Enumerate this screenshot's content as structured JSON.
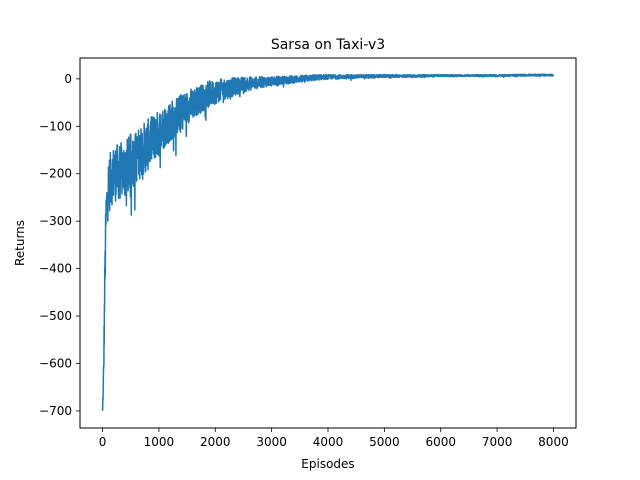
{
  "chart_data": {
    "type": "line",
    "title": "Sarsa on Taxi-v3",
    "xlabel": "Episodes",
    "ylabel": "Returns",
    "xlim": [
      -400,
      8400
    ],
    "ylim": [
      -736,
      44
    ],
    "xticks": [
      0,
      1000,
      2000,
      3000,
      4000,
      5000,
      6000,
      7000,
      8000
    ],
    "yticks": [
      0,
      -100,
      -200,
      -300,
      -400,
      -500,
      -600,
      -700
    ],
    "xtick_labels": [
      "0",
      "1000",
      "2000",
      "3000",
      "4000",
      "5000",
      "6000",
      "7000",
      "8000"
    ],
    "ytick_labels": [
      "0",
      "−100",
      "−200",
      "−300",
      "−400",
      "−500",
      "−600",
      "−700"
    ],
    "grid": false,
    "legend": "none",
    "series": [
      {
        "color": "#1f77b4",
        "x": [
          0,
          20,
          40,
          60,
          80,
          100,
          150,
          200,
          300,
          400,
          500,
          600,
          700,
          800,
          900,
          1000,
          1100,
          1200,
          1300,
          1400,
          1500,
          1600,
          1700,
          1800,
          1900,
          2000,
          2200,
          2400,
          2600,
          2800,
          3000,
          3200,
          3400,
          3600,
          3800,
          4000,
          4500,
          5000,
          5500,
          6000,
          6500,
          7000,
          7500,
          8000
        ],
        "y": [
          -700,
          -620,
          -430,
          -300,
          -260,
          -230,
          -210,
          -200,
          -195,
          -190,
          -175,
          -165,
          -150,
          -140,
          -125,
          -115,
          -100,
          -90,
          -80,
          -70,
          -60,
          -52,
          -45,
          -38,
          -32,
          -28,
          -20,
          -15,
          -10,
          -7,
          -5,
          -3,
          -1,
          1,
          3,
          4,
          5,
          6,
          6,
          7,
          7,
          7,
          8,
          8
        ],
        "noise_amplitude": [
          0,
          40,
          50,
          60,
          60,
          60,
          60,
          60,
          60,
          60,
          60,
          55,
          55,
          55,
          50,
          50,
          45,
          45,
          40,
          40,
          35,
          35,
          30,
          30,
          28,
          25,
          22,
          18,
          15,
          12,
          10,
          9,
          8,
          7,
          6,
          5,
          4,
          3,
          3,
          2,
          2,
          2,
          2,
          2
        ]
      }
    ]
  }
}
